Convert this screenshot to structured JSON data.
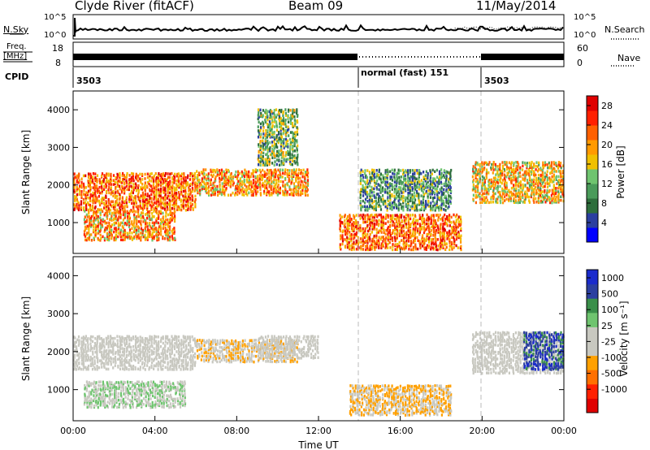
{
  "header": {
    "station": "Clyde River (fitACF)",
    "beam": "Beam 09",
    "date": "11/May/2014"
  },
  "sky_panel": {
    "left_label": "N.Sky",
    "right_label": "N.Search",
    "left_ticks": [
      "10^5",
      "10^0"
    ],
    "right_ticks": [
      "10^5",
      "10^0"
    ]
  },
  "freq_panel": {
    "left_label_1": "Freq.",
    "left_label_2": "[MHz]",
    "right_label": "Nave",
    "left_ticks": [
      "18",
      "8"
    ],
    "right_ticks": [
      "60",
      "0"
    ]
  },
  "cpid_panel": {
    "label": "CPID",
    "segments": [
      {
        "text": "3503",
        "start_hour": 0
      },
      {
        "text": "normal (fast) 151",
        "start_hour": 14
      },
      {
        "text": "3503",
        "start_hour": 20
      }
    ]
  },
  "colors": {
    "power_scale": [
      "#0000ff",
      "#2b3fa0",
      "#2e6e3c",
      "#4a9b5a",
      "#6fc46f",
      "#f0c000",
      "#ff9a00",
      "#ff6000",
      "#ff2000",
      "#e00000"
    ],
    "velocity_scale": [
      "#e00000",
      "#ff2000",
      "#ff7000",
      "#ffa000",
      "#c8c8c0",
      "#c8c8c0",
      "#6fc46f",
      "#3a8f4a",
      "#2b3fa0",
      "#1a2bcc"
    ],
    "ground_scatter": "#a8a8a0"
  },
  "chart_data": [
    {
      "type": "heatmap",
      "title": "Power",
      "ylabel": "Slant Range [km]",
      "xlabel": "",
      "xlim": [
        0,
        24
      ],
      "ylim": [
        180,
        4500
      ],
      "x_ticks": [
        "00:00",
        "04:00",
        "08:00",
        "12:00",
        "16:00",
        "20:00",
        "00:00"
      ],
      "y_ticks": [
        "1000",
        "2000",
        "3000",
        "4000"
      ],
      "colorbar": {
        "label": "Power [dB]",
        "ticks": [
          "4",
          "8",
          "12",
          "16",
          "20",
          "24",
          "28"
        ],
        "range": [
          0,
          30
        ]
      },
      "regions": [
        {
          "t0": 0.0,
          "t1": 6.0,
          "r0": 1300,
          "r1": 2300,
          "value": 22
        },
        {
          "t0": 0.5,
          "t1": 5.0,
          "r0": 500,
          "r1": 1300,
          "value": 20
        },
        {
          "t0": 6.0,
          "t1": 11.5,
          "r0": 1700,
          "r1": 2400,
          "value": 20
        },
        {
          "t0": 9.0,
          "t1": 11.0,
          "r0": 2500,
          "r1": 4000,
          "value": 12
        },
        {
          "t0": 13.0,
          "t1": 19.0,
          "r0": 250,
          "r1": 1200,
          "value": 22
        },
        {
          "t0": 14.0,
          "t1": 18.5,
          "r0": 1300,
          "r1": 2400,
          "value": 10
        },
        {
          "t0": 19.5,
          "t1": 24.0,
          "r0": 1500,
          "r1": 2600,
          "value": 18
        }
      ]
    },
    {
      "type": "heatmap",
      "title": "Velocity",
      "ylabel": "Slant Range [km]",
      "xlabel": "Time UT",
      "xlim": [
        0,
        24
      ],
      "ylim": [
        180,
        4500
      ],
      "x_ticks": [
        "00:00",
        "04:00",
        "08:00",
        "12:00",
        "16:00",
        "20:00",
        "00:00"
      ],
      "y_ticks": [
        "1000",
        "2000",
        "3000",
        "4000"
      ],
      "colorbar": {
        "label": "Velocity [m s⁻¹]",
        "ticks": [
          "1000",
          "500",
          "100",
          "25",
          "-25",
          "-100",
          "-500",
          "-1000"
        ],
        "range": [
          -1000,
          1000
        ]
      },
      "regions": [
        {
          "t0": 0.0,
          "t1": 6.0,
          "r0": 1500,
          "r1": 2400,
          "value": 0
        },
        {
          "t0": 0.5,
          "t1": 5.5,
          "r0": 500,
          "r1": 1200,
          "value": 150
        },
        {
          "t0": 6.0,
          "t1": 11.0,
          "r0": 1700,
          "r1": 2300,
          "value": -150
        },
        {
          "t0": 9.0,
          "t1": 12.0,
          "r0": 1800,
          "r1": 2400,
          "value": 0
        },
        {
          "t0": 13.5,
          "t1": 18.5,
          "r0": 300,
          "r1": 1100,
          "value": -200
        },
        {
          "t0": 19.5,
          "t1": 24.0,
          "r0": 1400,
          "r1": 2500,
          "value": 0
        },
        {
          "t0": 22.0,
          "t1": 24.0,
          "r0": 1500,
          "r1": 2500,
          "value": 700
        }
      ]
    }
  ],
  "time_axis_label": "Time UT"
}
